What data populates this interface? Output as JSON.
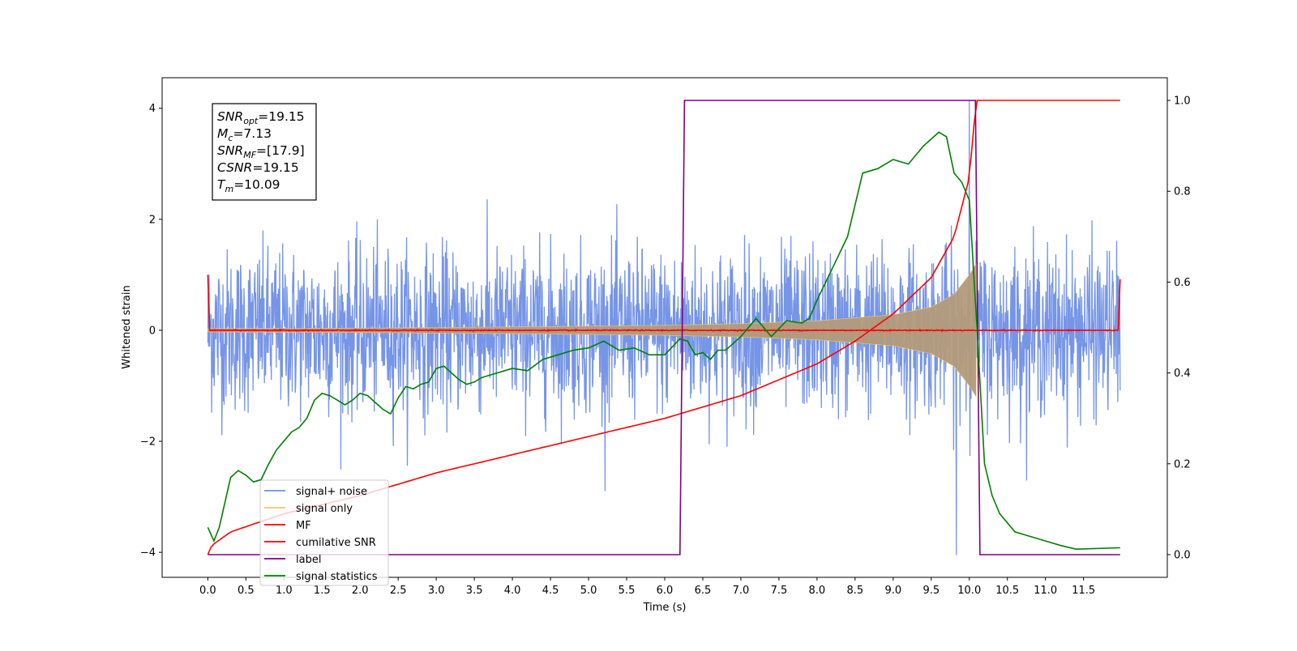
{
  "chart_data": {
    "type": "line",
    "xlabel": "Time (s)",
    "ylabel": "Whitened strain",
    "xlim": [
      -0.6,
      12.6
    ],
    "ylim_left": [
      -4.45,
      4.55
    ],
    "ylim_right": [
      -0.05,
      1.05
    ],
    "x_ticks": [
      0.0,
      0.5,
      1.0,
      1.5,
      2.0,
      2.5,
      3.0,
      3.5,
      4.0,
      4.5,
      5.0,
      5.5,
      6.0,
      6.5,
      7.0,
      7.5,
      8.0,
      8.5,
      9.0,
      9.5,
      10.0,
      10.5,
      11.0,
      11.5
    ],
    "x_tick_labels": [
      "0.0",
      "0.5",
      "1.0",
      "1.5",
      "2.0",
      "2.5",
      "3.0",
      "3.5",
      "4.0",
      "4.5",
      "5.0",
      "5.5",
      "6.0",
      "6.5",
      "7.0",
      "7.5",
      "8.0",
      "8.5",
      "9.0",
      "9.5",
      "10.0",
      "10.5",
      "11.0",
      "11.5"
    ],
    "y_ticks_left": [
      -4,
      -2,
      0,
      2,
      4
    ],
    "y_tick_labels_left": [
      "−4",
      "−2",
      "0",
      "2",
      "4"
    ],
    "y_ticks_right": [
      0.0,
      0.2,
      0.4,
      0.6,
      0.8,
      1.0
    ],
    "y_tick_labels_right": [
      "0.0",
      "0.2",
      "0.4",
      "0.6",
      "0.8",
      "1.0"
    ],
    "grid": false,
    "legend_position": "lower-left",
    "annotation": [
      {
        "sym": "SNR",
        "sub": "opt",
        "val": "=19.15"
      },
      {
        "sym": "M",
        "sub": "c",
        "val": "=7.13"
      },
      {
        "sym": "SNR",
        "sub": "MF",
        "val": "=[17.9]"
      },
      {
        "sym": "CSNR",
        "sub": "",
        "val": "=19.15"
      },
      {
        "sym": "T",
        "sub": "m",
        "val": "=10.09"
      }
    ],
    "series": [
      {
        "name": "signal+ noise",
        "color": "#6f8fe6",
        "axis": "left",
        "kind": "noise",
        "x_range": [
          0.0,
          11.98
        ],
        "amplitude": 1.0,
        "note_peaks": {
          "max": 4.15,
          "min": -4.05
        }
      },
      {
        "name": "signal only",
        "color": "#f5c66b",
        "axis": "left",
        "kind": "chirp",
        "x_range": [
          0.0,
          10.09
        ],
        "envelope": {
          "x": [
            0.0,
            2.0,
            4.0,
            6.0,
            7.0,
            8.0,
            9.0,
            9.5,
            9.8,
            10.0,
            10.09
          ],
          "y": [
            0.03,
            0.04,
            0.06,
            0.09,
            0.12,
            0.17,
            0.28,
            0.42,
            0.65,
            1.0,
            1.2
          ]
        }
      },
      {
        "name": "MF",
        "color": "#ff0000",
        "axis": "left",
        "kind": "mf",
        "x_range": [
          0.0,
          11.98
        ],
        "amplitude": 0.1,
        "edges": {
          "start": 1.0,
          "end": 0.92
        }
      },
      {
        "name": "cumilative SNR",
        "color": "#ff0000",
        "axis": "right",
        "x": [
          0.0,
          0.05,
          0.3,
          1.0,
          2.0,
          3.0,
          4.0,
          5.0,
          6.0,
          7.0,
          8.0,
          8.5,
          9.0,
          9.5,
          9.8,
          10.0,
          10.09,
          11.98
        ],
        "y": [
          0.0,
          0.02,
          0.05,
          0.09,
          0.13,
          0.18,
          0.22,
          0.26,
          0.3,
          0.35,
          0.42,
          0.47,
          0.53,
          0.61,
          0.7,
          0.83,
          1.0,
          1.0
        ]
      },
      {
        "name": "label",
        "color": "#800080",
        "axis": "right",
        "x": [
          0.0,
          6.2,
          6.26,
          10.08,
          10.14,
          11.98
        ],
        "y": [
          0.0,
          0.0,
          1.0,
          1.0,
          0.0,
          0.0
        ]
      },
      {
        "name": "signal statistics",
        "color": "#008000",
        "axis": "right",
        "x": [
          0.0,
          0.08,
          0.15,
          0.3,
          0.4,
          0.5,
          0.6,
          0.7,
          0.8,
          0.9,
          1.0,
          1.1,
          1.2,
          1.3,
          1.4,
          1.5,
          1.6,
          1.7,
          1.8,
          1.9,
          2.0,
          2.1,
          2.2,
          2.3,
          2.4,
          2.5,
          2.6,
          2.7,
          2.8,
          2.9,
          3.0,
          3.1,
          3.2,
          3.3,
          3.4,
          3.5,
          3.6,
          3.7,
          3.8,
          3.9,
          4.0,
          4.2,
          4.4,
          4.6,
          4.8,
          5.0,
          5.2,
          5.4,
          5.6,
          5.8,
          6.0,
          6.2,
          6.3,
          6.4,
          6.5,
          6.6,
          6.7,
          6.8,
          7.0,
          7.2,
          7.4,
          7.6,
          7.8,
          7.9,
          8.0,
          8.2,
          8.4,
          8.6,
          8.8,
          9.0,
          9.2,
          9.4,
          9.6,
          9.7,
          9.8,
          9.9,
          10.0,
          10.1,
          10.2,
          10.3,
          10.4,
          10.5,
          10.6,
          10.8,
          11.0,
          11.2,
          11.4,
          11.98
        ],
        "y": [
          0.06,
          0.03,
          0.06,
          0.17,
          0.185,
          0.175,
          0.16,
          0.165,
          0.2,
          0.23,
          0.25,
          0.27,
          0.28,
          0.3,
          0.34,
          0.355,
          0.35,
          0.34,
          0.33,
          0.34,
          0.355,
          0.35,
          0.335,
          0.32,
          0.31,
          0.345,
          0.37,
          0.365,
          0.375,
          0.38,
          0.41,
          0.415,
          0.4,
          0.385,
          0.375,
          0.38,
          0.39,
          0.395,
          0.4,
          0.405,
          0.41,
          0.405,
          0.43,
          0.44,
          0.45,
          0.455,
          0.47,
          0.45,
          0.455,
          0.44,
          0.44,
          0.475,
          0.47,
          0.44,
          0.445,
          0.43,
          0.45,
          0.45,
          0.48,
          0.52,
          0.48,
          0.515,
          0.51,
          0.52,
          0.56,
          0.63,
          0.7,
          0.84,
          0.85,
          0.87,
          0.86,
          0.9,
          0.93,
          0.92,
          0.84,
          0.82,
          0.78,
          0.5,
          0.2,
          0.13,
          0.09,
          0.07,
          0.05,
          0.04,
          0.03,
          0.02,
          0.012,
          0.015
        ]
      }
    ]
  }
}
